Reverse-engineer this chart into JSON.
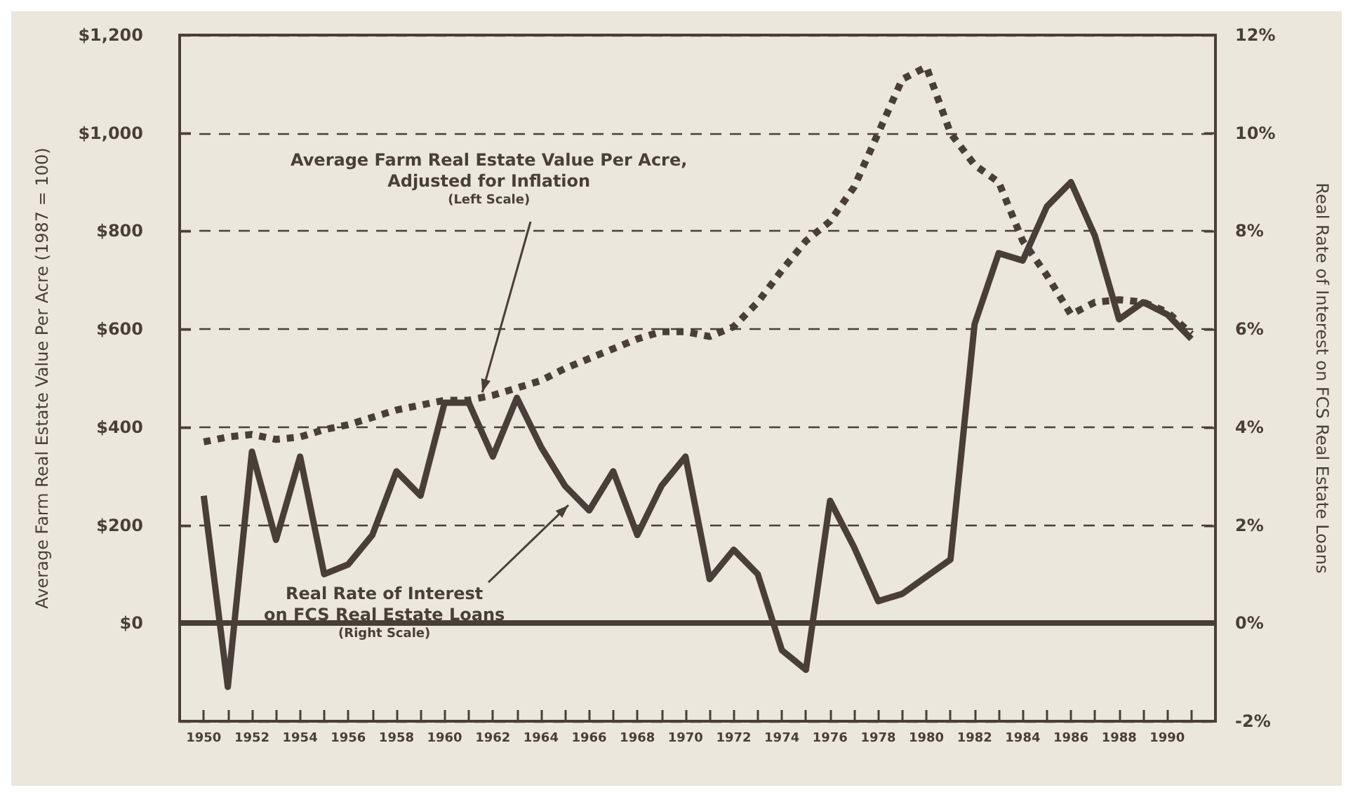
{
  "chart_data": {
    "type": "line",
    "ylabel": "Average Farm Real Estate Value Per Acre (1987 = 100)",
    "y2label": "Real Rate of Interest on FCS Real Estate Loans",
    "annotations": [
      {
        "text": "Average Farm Real Estate Value Per Acre,\nAdjusted for Inflation\n(Left Scale)",
        "x": 1961.5,
        "y": 460
      },
      "Real Rate of Interest\non FCS Real Estate Loans\n(Right Scale)"
    ],
    "x": [
      1950,
      1951,
      1952,
      1953,
      1954,
      1955,
      1956,
      1957,
      1958,
      1959,
      1960,
      1961,
      1962,
      1963,
      1964,
      1965,
      1966,
      1967,
      1968,
      1969,
      1970,
      1971,
      1972,
      1973,
      1974,
      1975,
      1976,
      1977,
      1978,
      1979,
      1980,
      1981,
      1982,
      1983,
      1984,
      1985,
      1986,
      1987,
      1988,
      1989,
      1990,
      1991
    ],
    "series": [
      {
        "color": "#4a3f38",
        "line_style": "dotted",
        "values": [
          370,
          380,
          385,
          375,
          380,
          395,
          405,
          420,
          435,
          445,
          455,
          455,
          465,
          480,
          495,
          520,
          540,
          560,
          580,
          595,
          595,
          585,
          605,
          655,
          720,
          780,
          820,
          890,
          1000,
          1110,
          1135,
          1000,
          935,
          900,
          780,
          710,
          630,
          655,
          660,
          655,
          635,
          590
        ]
      },
      {
        "color": "#4a3f38",
        "line_style": "solid",
        "axis": "y2",
        "values": [
          2.6,
          -1.3,
          3.5,
          1.7,
          3.4,
          1.0,
          1.2,
          1.8,
          3.1,
          2.6,
          4.5,
          4.5,
          3.4,
          4.6,
          3.6,
          2.8,
          2.3,
          3.1,
          1.8,
          2.8,
          3.4,
          0.9,
          1.5,
          1.0,
          -0.55,
          -0.95,
          2.5,
          1.55,
          0.45,
          0.6,
          0.95,
          1.3,
          6.1,
          7.55,
          7.4,
          8.5,
          9.0,
          7.9,
          6.2,
          6.55,
          6.3,
          5.8
        ]
      }
    ],
    "xlim": [
      1949,
      1992
    ],
    "xticks": [
      {
        "value": 1950,
        "label": "1950"
      },
      {
        "value": 1951,
        "label": null
      },
      {
        "value": 1952,
        "label": "1952"
      },
      {
        "value": 1953,
        "label": null
      },
      {
        "value": 1954,
        "label": "1954"
      },
      {
        "value": 1955,
        "label": null
      },
      {
        "value": 1956,
        "label": "1956"
      },
      {
        "value": 1957,
        "label": null
      },
      {
        "value": 1958,
        "label": "1958"
      },
      {
        "value": 1959,
        "label": null
      },
      {
        "value": 1960,
        "label": "1960"
      },
      {
        "value": 1961,
        "label": null
      },
      {
        "value": 1962,
        "label": "1962"
      },
      {
        "value": 1963,
        "label": null
      },
      {
        "value": 1964,
        "label": "1964"
      },
      {
        "value": 1965,
        "label": null
      },
      {
        "value": 1966,
        "label": "1966"
      },
      {
        "value": 1967,
        "label": null
      },
      {
        "value": 1968,
        "label": "1968"
      },
      {
        "value": 1969,
        "label": null
      },
      {
        "value": 1970,
        "label": "1970"
      },
      {
        "value": 1971,
        "label": null
      },
      {
        "value": 1972,
        "label": "1972"
      },
      {
        "value": 1973,
        "label": null
      },
      {
        "value": 1974,
        "label": "1974"
      },
      {
        "value": 1975,
        "label": null
      },
      {
        "value": 1976,
        "label": "1976"
      },
      {
        "value": 1977,
        "label": null
      },
      {
        "value": 1978,
        "label": "1978"
      },
      {
        "value": 1979,
        "label": null
      },
      {
        "value": 1980,
        "label": "1980"
      },
      {
        "value": 1981,
        "label": null
      },
      {
        "value": 1982,
        "label": "1982"
      },
      {
        "value": 1983,
        "label": null
      },
      {
        "value": 1984,
        "label": "1984"
      },
      {
        "value": 1985,
        "label": null
      },
      {
        "value": 1986,
        "label": "1986"
      },
      {
        "value": 1987,
        "label": null
      },
      {
        "value": 1988,
        "label": "1988"
      },
      {
        "value": 1989,
        "label": null
      },
      {
        "value": 1990,
        "label": "1990"
      },
      {
        "value": 1991,
        "label": null
      }
    ],
    "ylim": [
      -200,
      1200
    ],
    "yticks": [
      {
        "value": -200,
        "label": null
      },
      {
        "value": 0,
        "label": "$0"
      },
      {
        "value": 200,
        "label": "$200"
      },
      {
        "value": 400,
        "label": "$400"
      },
      {
        "value": 600,
        "label": "$600"
      },
      {
        "value": 800,
        "label": "$800"
      },
      {
        "value": 1000,
        "label": "$1,000"
      },
      {
        "value": 1200,
        "label": "$1,200"
      }
    ],
    "y2lim": [
      -2,
      12
    ],
    "y2ticks": [
      {
        "value": -2,
        "label": "-2%"
      },
      {
        "value": 0,
        "label": "0%"
      },
      {
        "value": 2,
        "label": "2%"
      },
      {
        "value": 4,
        "label": "4%"
      },
      {
        "value": 6,
        "label": "6%"
      },
      {
        "value": 8,
        "label": "8%"
      },
      {
        "value": 10,
        "label": "10%"
      },
      {
        "value": 12,
        "label": "12%"
      }
    ],
    "ref_lines": [
      {
        "axis": "y",
        "value": 0,
        "line_style": "solid",
        "color": "#4a3f38"
      }
    ],
    "grid": "y",
    "marker": "none"
  }
}
